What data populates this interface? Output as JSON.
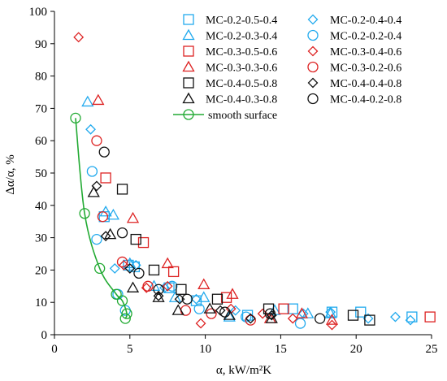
{
  "chart_data": {
    "type": "scatter",
    "xlabel": "α, kW/m²K",
    "ylabel": "Δα/α, %",
    "xlim": [
      0,
      25
    ],
    "ylim": [
      0,
      100
    ],
    "x_ticks": [
      0,
      5,
      10,
      15,
      20,
      25
    ],
    "y_ticks": [
      0,
      10,
      20,
      30,
      40,
      50,
      60,
      70,
      80,
      90,
      100
    ],
    "x_tick_labels": [
      "0",
      "5",
      "10",
      "15",
      "20",
      "25"
    ],
    "y_tick_labels": [
      "0",
      "10",
      "20",
      "30",
      "40",
      "50",
      "60",
      "70",
      "80",
      "90",
      "100"
    ],
    "grid": false,
    "legend_position": "top-right",
    "series": [
      {
        "name": "MC-0.2-0.5-0.4",
        "marker": "square",
        "color": "#22aaee",
        "x": [
          3.3,
          4.9,
          5.3,
          7.6,
          9.4,
          12.8,
          15.8,
          18.4,
          20.3,
          23.7
        ],
        "y": [
          36.5,
          21.5,
          21,
          14.5,
          10.5,
          6,
          8,
          7,
          7,
          5.5
        ]
      },
      {
        "name": "MC-0.2-0.4-0.4",
        "marker": "diamond",
        "color": "#22aaee",
        "x": [
          2.4,
          4.0,
          5.4,
          7.3,
          9.4,
          12.0,
          14.4,
          16.5,
          18.3,
          20.8,
          22.6,
          23.6
        ],
        "y": [
          63.5,
          20.5,
          21.5,
          14.5,
          11,
          7.5,
          6,
          6.5,
          7,
          5,
          5.5,
          4.5
        ]
      },
      {
        "name": "MC-0.2-0.3-0.4",
        "marker": "triangle",
        "color": "#22aaee",
        "x": [
          2.2,
          3.4,
          3.9,
          5.0,
          6.6,
          8.0,
          9.9,
          11.6,
          14.6,
          16.8,
          18.3
        ],
        "y": [
          72,
          38,
          37,
          22,
          15,
          11.5,
          11.5,
          5.5,
          7.5,
          6.5,
          6.5
        ]
      },
      {
        "name": "MC-0.2-0.2-0.4",
        "marker": "circle",
        "color": "#22aaee",
        "x": [
          2.5,
          2.8,
          4.2,
          4.7,
          7.8,
          9.6,
          12.7,
          16.3
        ],
        "y": [
          50.5,
          29.5,
          12.5,
          7.5,
          15,
          8,
          5.5,
          3.5
        ]
      },
      {
        "name": "MC-0.3-0.5-0.6",
        "marker": "square",
        "color": "#dd2222",
        "x": [
          3.4,
          5.9,
          7.9,
          11.4,
          15.2,
          24.9
        ],
        "y": [
          48.5,
          28.5,
          19.5,
          11.5,
          8,
          5.5
        ]
      },
      {
        "name": "MC-0.3-0.4-0.6",
        "marker": "diamond",
        "color": "#dd2222",
        "x": [
          1.6,
          4.6,
          6.1,
          7.5,
          9.7,
          11.7,
          13.8,
          15.8,
          18.4
        ],
        "y": [
          92,
          21.5,
          14.5,
          15,
          3.5,
          8,
          6.5,
          5,
          3
        ]
      },
      {
        "name": "MC-0.3-0.3-0.6",
        "marker": "triangle",
        "color": "#dd2222",
        "x": [
          2.9,
          5.2,
          7.5,
          9.9,
          11.8,
          14.3,
          16.4,
          18.4
        ],
        "y": [
          72.5,
          36,
          22,
          15.5,
          12.5,
          5,
          6.5,
          4.5
        ]
      },
      {
        "name": "MC-0.3-0.2-0.6",
        "marker": "circle",
        "color": "#dd2222",
        "x": [
          2.8,
          3.2,
          4.5,
          6.2,
          8.7,
          10.4,
          13.0
        ],
        "y": [
          60,
          36.5,
          22.5,
          15,
          7.5,
          6.5,
          4.5
        ]
      },
      {
        "name": "MC-0.4-0.5-0.8",
        "marker": "square",
        "color": "#111111",
        "x": [
          4.5,
          5.4,
          6.6,
          8.4,
          10.8,
          14.2,
          19.8,
          20.9
        ],
        "y": [
          45,
          29.5,
          20,
          14,
          11,
          8,
          6,
          4.5
        ]
      },
      {
        "name": "MC-0.4-0.4-0.8",
        "marker": "diamond",
        "color": "#111111",
        "x": [
          2.8,
          3.4,
          5.0,
          6.9,
          8.3,
          11.0,
          13.0,
          14.4
        ],
        "y": [
          46,
          30.5,
          20.5,
          12,
          11,
          7.5,
          5,
          6
        ]
      },
      {
        "name": "MC-0.4-0.3-0.8",
        "marker": "triangle",
        "color": "#111111",
        "x": [
          2.6,
          3.7,
          5.2,
          6.9,
          8.2,
          10.3,
          11.6,
          14.4
        ],
        "y": [
          44,
          31,
          14.5,
          11.5,
          7.5,
          8,
          6,
          5
        ]
      },
      {
        "name": "MC-0.4-0.2-0.8",
        "marker": "circle",
        "color": "#111111",
        "x": [
          3.3,
          4.5,
          5.6,
          6.9,
          8.8,
          11.3,
          14.3,
          17.6
        ],
        "y": [
          56.5,
          31.5,
          19,
          14,
          11,
          7,
          6.5,
          5
        ]
      },
      {
        "name": "smooth surface",
        "marker": "circle-line",
        "color": "#22aa33",
        "x": [
          1.4,
          2.0,
          3.0,
          4.1,
          4.5,
          4.8,
          4.7
        ],
        "y": [
          67,
          37.5,
          20.5,
          12.5,
          10.5,
          6.5,
          5
        ]
      }
    ]
  }
}
